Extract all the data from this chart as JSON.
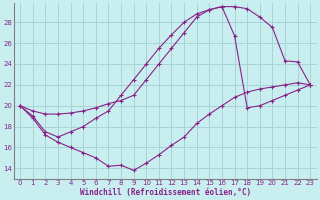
{
  "xlabel": "Windchill (Refroidissement éolien,°C)",
  "bg_color": "#c8eef0",
  "grid_color": "#a8d4d8",
  "line_color": "#882288",
  "xlim": [
    -0.5,
    23.5
  ],
  "ylim": [
    13.0,
    29.8
  ],
  "yticks": [
    14,
    16,
    18,
    20,
    22,
    24,
    26,
    28
  ],
  "xticks": [
    0,
    1,
    2,
    3,
    4,
    5,
    6,
    7,
    8,
    9,
    10,
    11,
    12,
    13,
    14,
    15,
    16,
    17,
    18,
    19,
    20,
    21,
    22,
    23
  ],
  "line1_x": [
    0,
    1,
    2,
    3,
    4,
    5,
    6,
    7,
    8,
    9,
    10,
    11,
    12,
    13,
    14,
    15,
    16,
    17,
    18,
    19,
    20,
    21,
    22,
    23
  ],
  "line1_y": [
    20.0,
    19.5,
    19.2,
    19.2,
    19.3,
    19.5,
    19.8,
    20.2,
    20.5,
    21.0,
    22.5,
    24.0,
    25.5,
    27.0,
    28.5,
    29.2,
    29.5,
    29.5,
    29.3,
    28.5,
    27.5,
    24.3,
    24.2,
    22.0
  ],
  "line2_x": [
    0,
    1,
    2,
    3,
    4,
    5,
    6,
    7,
    8,
    9,
    10,
    11,
    12,
    13,
    14,
    15,
    16,
    17,
    18,
    19,
    20,
    21,
    22,
    23
  ],
  "line2_y": [
    20.0,
    19.0,
    17.5,
    17.0,
    17.5,
    18.0,
    18.8,
    19.5,
    21.0,
    22.5,
    24.0,
    25.5,
    26.8,
    28.0,
    28.8,
    29.2,
    29.5,
    26.7,
    19.8,
    20.0,
    20.5,
    21.0,
    21.5,
    22.0
  ],
  "line3_x": [
    0,
    1,
    2,
    3,
    4,
    5,
    6,
    7,
    8,
    9,
    10,
    11,
    12,
    13,
    14,
    15,
    16,
    17,
    18,
    19,
    20,
    21,
    22,
    23
  ],
  "line3_y": [
    20.0,
    18.8,
    17.2,
    16.5,
    16.0,
    15.5,
    15.0,
    14.2,
    14.3,
    13.8,
    14.5,
    15.3,
    16.2,
    17.0,
    18.3,
    19.2,
    20.0,
    20.8,
    21.3,
    21.6,
    21.8,
    22.0,
    22.2,
    22.0
  ]
}
